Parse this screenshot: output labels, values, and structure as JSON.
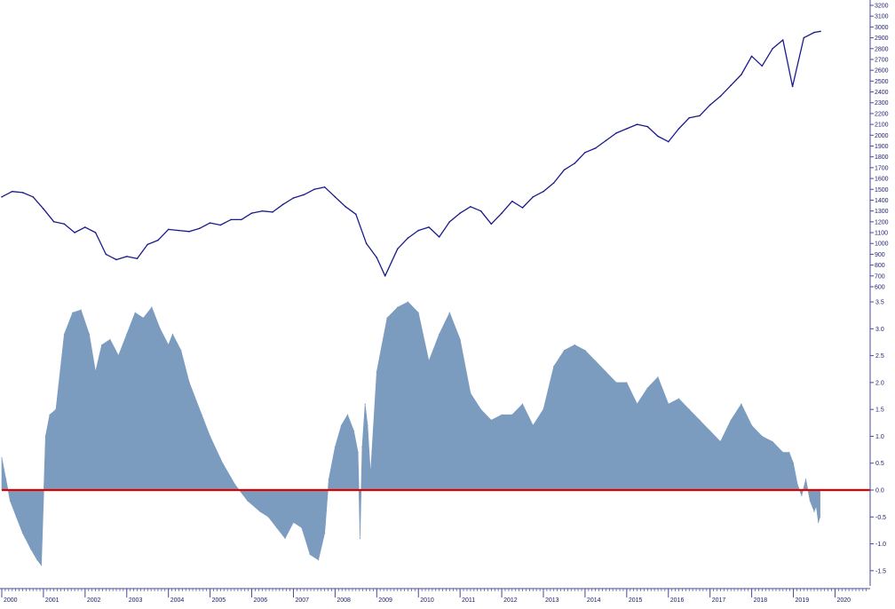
{
  "chart_data": [
    {
      "type": "line",
      "title": "",
      "xlabel": "",
      "ylabel": "",
      "ylim": [
        600,
        3200
      ],
      "yticks": [
        600,
        700,
        800,
        900,
        1000,
        1100,
        1200,
        1300,
        1400,
        1500,
        1600,
        1700,
        1800,
        1900,
        2000,
        2100,
        2200,
        2300,
        2400,
        2500,
        2600,
        2700,
        2800,
        2900,
        3000,
        3100,
        3200
      ],
      "colors": {
        "line": "#1a1a8c"
      },
      "series": [
        {
          "name": "",
          "x": [
            2000.0,
            2000.25,
            2000.5,
            2000.75,
            2001.0,
            2001.25,
            2001.5,
            2001.75,
            2002.0,
            2002.25,
            2002.5,
            2002.75,
            2003.0,
            2003.25,
            2003.5,
            2003.75,
            2004.0,
            2004.25,
            2004.5,
            2004.75,
            2005.0,
            2005.25,
            2005.5,
            2005.75,
            2006.0,
            2006.25,
            2006.5,
            2006.75,
            2007.0,
            2007.25,
            2007.5,
            2007.75,
            2008.0,
            2008.25,
            2008.5,
            2008.75,
            2009.0,
            2009.2,
            2009.5,
            2009.75,
            2010.0,
            2010.25,
            2010.5,
            2010.75,
            2011.0,
            2011.25,
            2011.5,
            2011.75,
            2012.0,
            2012.25,
            2012.5,
            2012.75,
            2013.0,
            2013.25,
            2013.5,
            2013.75,
            2014.0,
            2014.25,
            2014.5,
            2014.75,
            2015.0,
            2015.25,
            2015.5,
            2015.75,
            2016.0,
            2016.25,
            2016.5,
            2016.75,
            2017.0,
            2017.25,
            2017.5,
            2017.75,
            2018.0,
            2018.25,
            2018.5,
            2018.75,
            2018.98,
            2019.25,
            2019.5,
            2019.65
          ],
          "y": [
            1430,
            1480,
            1470,
            1430,
            1320,
            1200,
            1180,
            1100,
            1150,
            1100,
            900,
            850,
            880,
            860,
            990,
            1030,
            1130,
            1120,
            1110,
            1140,
            1190,
            1170,
            1220,
            1220,
            1280,
            1300,
            1290,
            1360,
            1420,
            1450,
            1500,
            1520,
            1430,
            1340,
            1270,
            1000,
            870,
            700,
            950,
            1050,
            1120,
            1150,
            1060,
            1200,
            1280,
            1340,
            1300,
            1180,
            1280,
            1390,
            1330,
            1430,
            1480,
            1560,
            1680,
            1740,
            1840,
            1880,
            1950,
            2020,
            2060,
            2100,
            2080,
            1990,
            1940,
            2060,
            2160,
            2180,
            2280,
            2360,
            2460,
            2560,
            2730,
            2640,
            2800,
            2880,
            2450,
            2900,
            2950,
            2960
          ]
        }
      ]
    },
    {
      "type": "area",
      "title": "",
      "xlabel": "",
      "ylabel": "",
      "ylim": [
        -1.75,
        3.6
      ],
      "yticks": [
        3.5,
        3.0,
        2.5,
        2.0,
        1.5,
        1.0,
        0.5,
        0.0,
        -0.5,
        -1.0,
        -1.5
      ],
      "ytick_labels": [
        "3.5",
        "3.0",
        "2.5",
        "2.0",
        "1.5",
        "1.0",
        "0.5",
        "0.0",
        "-0.5",
        "-1.0",
        "-1.5"
      ],
      "reference_line": {
        "y": 0.0,
        "color": "#e00000"
      },
      "colors": {
        "fill": "#7b9bbf"
      },
      "series": [
        {
          "name": "",
          "x": [
            2000.0,
            2000.1,
            2000.2,
            2000.35,
            2000.5,
            2000.7,
            2000.85,
            2000.95,
            2001.05,
            2001.15,
            2001.3,
            2001.5,
            2001.7,
            2001.9,
            2002.1,
            2002.25,
            2002.4,
            2002.6,
            2002.8,
            2003.0,
            2003.2,
            2003.4,
            2003.6,
            2003.8,
            2004.0,
            2004.1,
            2004.3,
            2004.5,
            2004.8,
            2005.0,
            2005.3,
            2005.6,
            2005.9,
            2006.2,
            2006.4,
            2006.6,
            2006.8,
            2007.0,
            2007.2,
            2007.4,
            2007.6,
            2007.75,
            2007.85,
            2008.0,
            2008.15,
            2008.3,
            2008.45,
            2008.55,
            2008.6,
            2008.65,
            2008.72,
            2008.78,
            2008.85,
            2009.0,
            2009.25,
            2009.5,
            2009.75,
            2010.0,
            2010.25,
            2010.5,
            2010.75,
            2011.0,
            2011.25,
            2011.5,
            2011.75,
            2012.0,
            2012.25,
            2012.5,
            2012.75,
            2013.0,
            2013.25,
            2013.5,
            2013.75,
            2014.0,
            2014.25,
            2014.5,
            2014.75,
            2015.0,
            2015.25,
            2015.5,
            2015.75,
            2016.0,
            2016.25,
            2016.5,
            2016.75,
            2017.0,
            2017.25,
            2017.5,
            2017.75,
            2018.0,
            2018.25,
            2018.5,
            2018.75,
            2018.9,
            2019.0,
            2019.1,
            2019.2,
            2019.3,
            2019.4,
            2019.5,
            2019.55,
            2019.6,
            2019.64
          ],
          "y": [
            0.6,
            0.2,
            -0.2,
            -0.5,
            -0.8,
            -1.1,
            -1.3,
            -1.4,
            1.0,
            1.4,
            1.5,
            2.9,
            3.3,
            3.35,
            2.9,
            2.2,
            2.7,
            2.8,
            2.5,
            2.9,
            3.3,
            3.2,
            3.4,
            3.0,
            2.7,
            2.9,
            2.6,
            2.0,
            1.4,
            1.0,
            0.5,
            0.1,
            -0.2,
            -0.4,
            -0.5,
            -0.7,
            -0.9,
            -0.6,
            -0.7,
            -1.2,
            -1.3,
            -0.8,
            0.2,
            0.8,
            1.2,
            1.4,
            1.1,
            0.7,
            -0.9,
            0.8,
            1.6,
            1.2,
            0.3,
            2.2,
            3.2,
            3.4,
            3.5,
            3.3,
            2.4,
            2.9,
            3.3,
            2.8,
            1.8,
            1.5,
            1.3,
            1.4,
            1.4,
            1.6,
            1.2,
            1.5,
            2.3,
            2.6,
            2.7,
            2.6,
            2.4,
            2.2,
            2.0,
            2.0,
            1.6,
            1.9,
            2.1,
            1.6,
            1.7,
            1.5,
            1.3,
            1.1,
            0.9,
            1.3,
            1.6,
            1.2,
            1.0,
            0.9,
            0.7,
            0.7,
            0.5,
            0.1,
            -0.1,
            0.2,
            -0.2,
            -0.4,
            -0.3,
            -0.6,
            -0.5
          ]
        }
      ]
    }
  ],
  "x_axis": {
    "labels": [
      "2000",
      "2001",
      "2002",
      "2003",
      "2004",
      "2005",
      "2006",
      "2007",
      "2008",
      "2009",
      "2010",
      "2011",
      "2012",
      "2013",
      "2014",
      "2015",
      "2016",
      "2017",
      "2018",
      "2019",
      "2020"
    ],
    "values": [
      2000,
      2001,
      2002,
      2003,
      2004,
      2005,
      2006,
      2007,
      2008,
      2009,
      2010,
      2011,
      2012,
      2013,
      2014,
      2015,
      2016,
      2017,
      2018,
      2019,
      2020
    ],
    "range": [
      2000.0,
      2020.8
    ]
  }
}
